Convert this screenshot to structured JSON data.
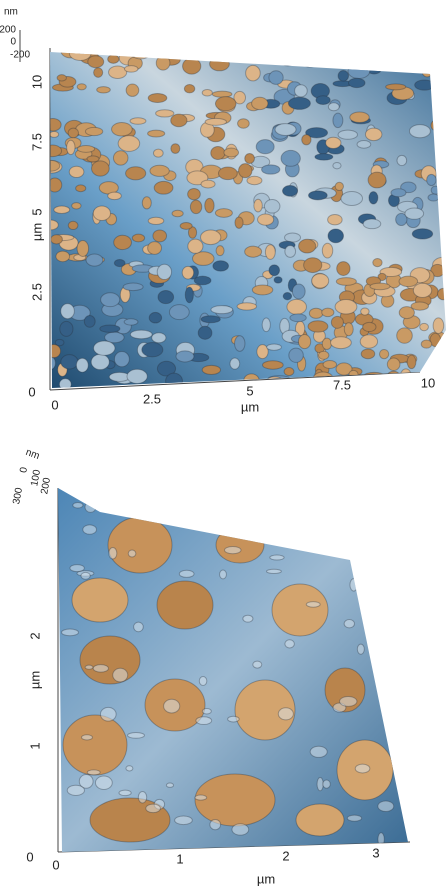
{
  "panels": [
    {
      "z_axis": {
        "unit": "nm",
        "ticks": [
          "200",
          "0",
          "-200"
        ]
      },
      "y_axis": {
        "label": "µm",
        "ticks": [
          "10",
          "7.5",
          "5",
          "2.5",
          "0"
        ]
      },
      "x_axis": {
        "label": "µm",
        "ticks": [
          "0",
          "2.5",
          "5",
          "7.5",
          "10"
        ]
      }
    },
    {
      "z_axis": {
        "unit": "nm",
        "ticks": [
          "300",
          "200",
          "100",
          "0"
        ]
      },
      "y_axis": {
        "label": "µm",
        "ticks": [
          "2",
          "1",
          "0"
        ]
      },
      "x_axis": {
        "label": "µm",
        "ticks": [
          "0",
          "1",
          "2",
          "3"
        ]
      }
    }
  ]
}
